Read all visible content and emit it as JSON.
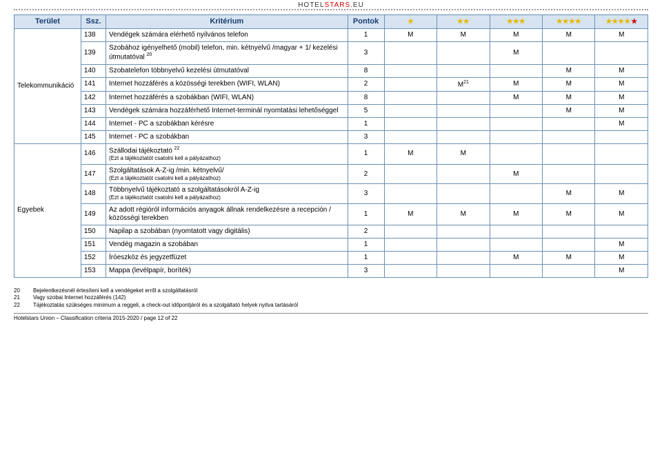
{
  "logo": {
    "brand": "HOTEL",
    "stars_word": "STARS",
    "tld": ".EU"
  },
  "header": {
    "area": "Terület",
    "ssz": "Ssz.",
    "criterion": "Kritérium",
    "points": "Pontok",
    "star_colors": {
      "normal": "#e6b800",
      "red": "#cc0000"
    }
  },
  "areas": {
    "telekom": "Telekommunikáció",
    "egyebek": "Egyebek"
  },
  "rows": [
    {
      "ssz": "138",
      "krit": "Vendégek számára elérhető nyilvános telefon",
      "pont": "1",
      "m": [
        "M",
        "M",
        "M",
        "M",
        "M"
      ]
    },
    {
      "ssz": "139",
      "krit": "Szobához igényelhető (mobil) telefon, min. kétnyelvű /magyar + 1/ kezelési útmutatóval ",
      "sup": "20",
      "pont": "3",
      "m": [
        "",
        "",
        "M",
        "",
        ""
      ]
    },
    {
      "ssz": "140",
      "krit": "Szobatelefon többnyelvű kezelési útmutatóval",
      "pont": "8",
      "m": [
        "",
        "",
        "",
        "M",
        "M"
      ]
    },
    {
      "ssz": "141",
      "krit": "Internet hozzáférés a közösségi terekben (WIFI, WLAN)",
      "pont": "2",
      "m": [
        "",
        "M",
        "M",
        "M",
        "M"
      ],
      "m_sup_idx": 1,
      "m_sup": "21"
    },
    {
      "ssz": "142",
      "krit": "Internet hozzáférés a szobákban (WIFI, WLAN)",
      "pont": "8",
      "m": [
        "",
        "",
        "M",
        "M",
        "M"
      ]
    },
    {
      "ssz": "143",
      "krit": "Vendégek számára hozzáférhető Internet-terminál nyomtatási lehetőséggel",
      "pont": "5",
      "m": [
        "",
        "",
        "",
        "M",
        "M"
      ]
    },
    {
      "ssz": "144",
      "krit": "Internet - PC  a szobákban kérésre",
      "pont": "1",
      "m": [
        "",
        "",
        "",
        "",
        "M"
      ]
    },
    {
      "ssz": "145",
      "krit": "Internet - PC a szobákban",
      "pont": "3",
      "m": [
        "",
        "",
        "",
        "",
        ""
      ]
    },
    {
      "ssz": "146",
      "krit_top": "Szállodai tájékoztató ",
      "sup": "22",
      "krit_sub": "(Ezt a tájékoztatót csatolni kell a pályázathoz)",
      "pont": "1",
      "m": [
        "M",
        "M",
        "",
        "",
        ""
      ]
    },
    {
      "ssz": "147",
      "krit_top": "Szolgáltatások A-Z-ig /min. kétnyelvű/",
      "krit_sub": "(Ezt a tájékoztatót csatolni kell a pályázathoz)",
      "pont": "2",
      "m": [
        "",
        "",
        "M",
        "",
        ""
      ]
    },
    {
      "ssz": "148",
      "krit_top": "Többnyelvű tájékoztató a szolgáltatásokról A-Z-ig",
      "krit_sub": "(Ezt a tájékoztatót csatolni kell a pályázathoz)",
      "pont": "3",
      "m": [
        "",
        "",
        "",
        "M",
        "M"
      ]
    },
    {
      "ssz": "149",
      "krit": "Az adott régióról információs anyagok állnak rendelkezésre a recepción / közösségi terekben",
      "pont": "1",
      "m": [
        "M",
        "M",
        "M",
        "M",
        "M"
      ]
    },
    {
      "ssz": "150",
      "krit": "Napilap a szobában (nyomtatott vagy digitális)",
      "pont": "2",
      "m": [
        "",
        "",
        "",
        "",
        ""
      ]
    },
    {
      "ssz": "151",
      "krit": "Vendég magazin a szobában",
      "pont": "1",
      "m": [
        "",
        "",
        "",
        "",
        "M"
      ]
    },
    {
      "ssz": "152",
      "krit": "Íróeszköz és jegyzetfüzet",
      "pont": "1",
      "m": [
        "",
        "",
        "M",
        "M",
        "M"
      ]
    },
    {
      "ssz": "153",
      "krit": "Mappa (levélpapír, boríték)",
      "pont": "3",
      "m": [
        "",
        "",
        "",
        "",
        "M"
      ]
    }
  ],
  "footnotes": [
    {
      "n": "20",
      "t": "Bejelentkezésnél értesíteni kell a vendégeket erről a szolgáltatásról"
    },
    {
      "n": "21",
      "t": "Vagy szobai Internet hozzáférés (142)"
    },
    {
      "n": "22",
      "t": "Tájékoztatás szükséges minimum a reggeli, a check-out időpontjáról és a szolgáltató helyek nyitva tartásáról"
    }
  ],
  "footer": "Hotelstars Union – Classification criteria 2015-2020 / page 12 of 22"
}
